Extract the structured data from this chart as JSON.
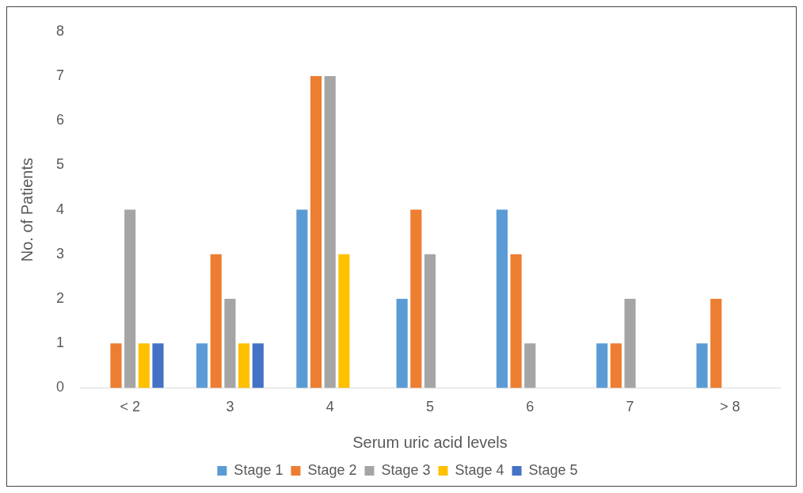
{
  "chart_data": {
    "type": "bar",
    "xlabel": "Serum uric acid levels",
    "ylabel": "No. of Patients",
    "categories": [
      "< 2",
      "3",
      "4",
      "5",
      "6",
      "7",
      "> 8"
    ],
    "series": [
      {
        "name": "Stage 1",
        "color": "#5b9bd5",
        "values": [
          0,
          1,
          4,
          2,
          4,
          1,
          1
        ]
      },
      {
        "name": "Stage 2",
        "color": "#ed7d31",
        "values": [
          1,
          3,
          7,
          4,
          3,
          1,
          2
        ]
      },
      {
        "name": "Stage 3",
        "color": "#a5a5a5",
        "values": [
          4,
          2,
          7,
          3,
          1,
          2,
          0
        ]
      },
      {
        "name": "Stage 4",
        "color": "#ffc000",
        "values": [
          1,
          1,
          3,
          0,
          0,
          0,
          0
        ]
      },
      {
        "name": "Stage 5",
        "color": "#4472c4",
        "values": [
          1,
          1,
          0,
          0,
          0,
          0,
          0
        ]
      }
    ],
    "ylim": [
      0,
      8
    ],
    "yticks": [
      0,
      1,
      2,
      3,
      4,
      5,
      6,
      7,
      8
    ],
    "grid": false,
    "legend": "bottom"
  }
}
